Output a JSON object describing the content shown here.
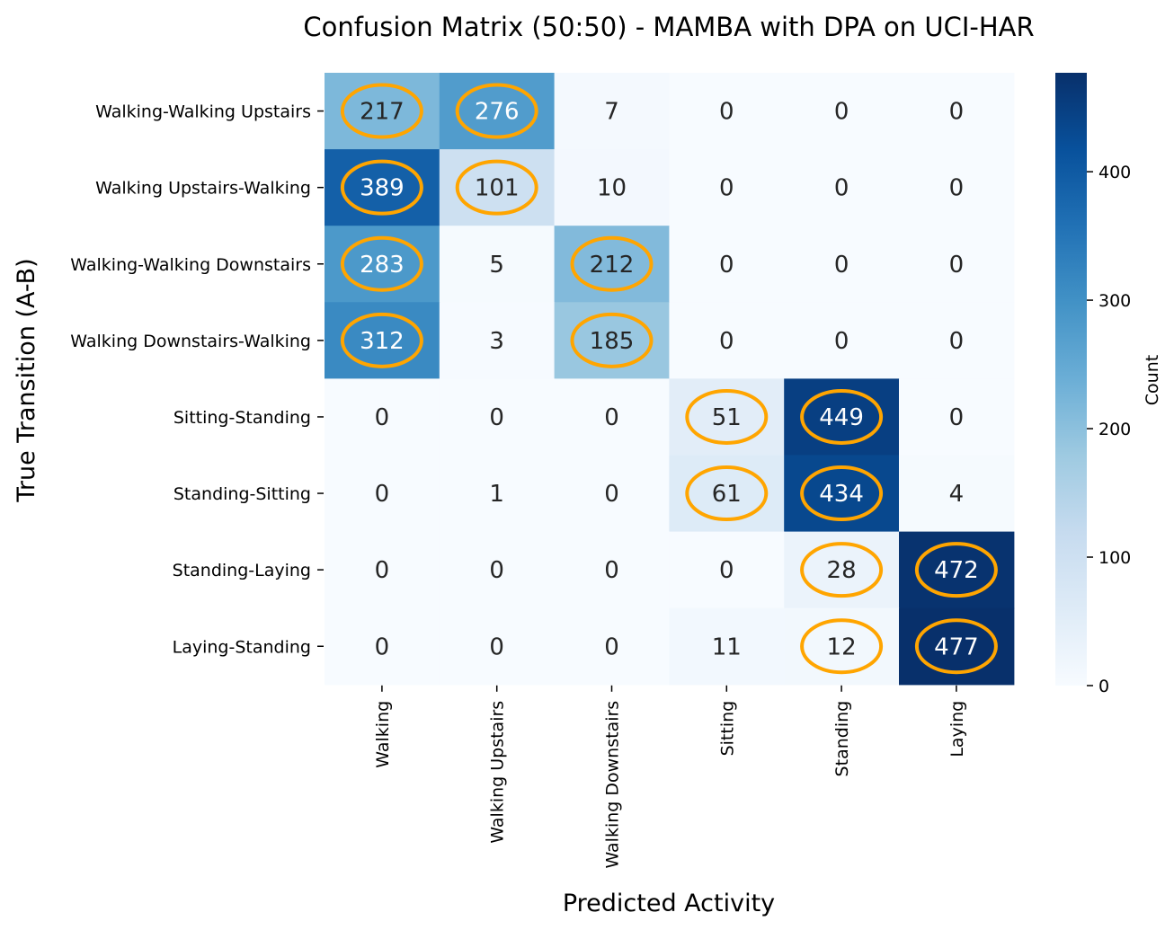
{
  "chart_data": {
    "type": "heatmap",
    "title": "Confusion Matrix (50:50) - MAMBA with DPA on UCI-HAR",
    "xlabel": "Predicted Activity",
    "ylabel": "True Transition (A-B)",
    "x_categories": [
      "Walking",
      "Walking Upstairs",
      "Walking Downstairs",
      "Sitting",
      "Standing",
      "Laying"
    ],
    "y_categories": [
      "Walking-Walking Upstairs",
      "Walking Upstairs-Walking",
      "Walking-Walking Downstairs",
      "Walking Downstairs-Walking",
      "Sitting-Standing",
      "Standing-Sitting",
      "Standing-Laying",
      "Laying-Standing"
    ],
    "values": [
      [
        217,
        276,
        7,
        0,
        0,
        0
      ],
      [
        389,
        101,
        10,
        0,
        0,
        0
      ],
      [
        283,
        5,
        212,
        0,
        0,
        0
      ],
      [
        312,
        3,
        185,
        0,
        0,
        0
      ],
      [
        0,
        0,
        0,
        51,
        449,
        0
      ],
      [
        0,
        1,
        0,
        61,
        434,
        4
      ],
      [
        0,
        0,
        0,
        0,
        28,
        472
      ],
      [
        0,
        0,
        0,
        11,
        12,
        477
      ]
    ],
    "highlighted_cells": [
      [
        0,
        0
      ],
      [
        0,
        1
      ],
      [
        1,
        0
      ],
      [
        1,
        1
      ],
      [
        2,
        0
      ],
      [
        2,
        2
      ],
      [
        3,
        0
      ],
      [
        3,
        2
      ],
      [
        4,
        3
      ],
      [
        4,
        4
      ],
      [
        5,
        3
      ],
      [
        5,
        4
      ],
      [
        6,
        4
      ],
      [
        6,
        5
      ],
      [
        7,
        4
      ],
      [
        7,
        5
      ]
    ],
    "highlight_color": "#FFA500",
    "colormap": "Blues",
    "colorbar": {
      "label": "Count",
      "range": [
        0,
        477
      ],
      "ticks": [
        0,
        100,
        200,
        300,
        400
      ]
    }
  }
}
